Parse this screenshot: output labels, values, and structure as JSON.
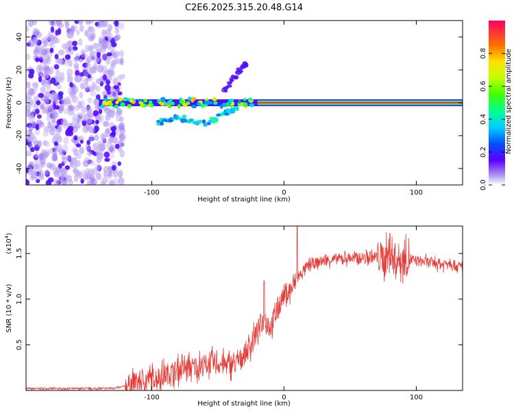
{
  "title": "C2E6.2025.315.20.48.G14",
  "chart_data": [
    {
      "type": "heatmap",
      "name": "spectrogram",
      "xlabel": "Height of straight line (km)",
      "ylabel": "Frequency (Hz)",
      "xlim": [
        -195,
        135
      ],
      "ylim": [
        -50,
        50
      ],
      "xticks": [
        -100,
        0,
        100
      ],
      "yticks": [
        -40,
        -20,
        0,
        20,
        40
      ],
      "colorbar": {
        "label": "Normalized spectral amplitude",
        "range": [
          0,
          1
        ],
        "ticks": [
          0.0,
          0.2,
          0.4,
          0.6,
          0.8
        ]
      },
      "features": [
        {
          "name": "noise-region",
          "x_range": [
            -195,
            -122
          ],
          "freq_range": [
            -50,
            50
          ],
          "amplitude": 0.1
        },
        {
          "name": "carrier-line",
          "x_range": [
            -140,
            135
          ],
          "freq": 0,
          "amplitude": 1.0
        },
        {
          "name": "lower-branch",
          "points": [
            [
              -95,
              -12
            ],
            [
              -80,
              -9
            ],
            [
              -60,
              -13
            ],
            [
              -45,
              -7
            ],
            [
              -35,
              -2
            ]
          ],
          "amplitude": 0.35
        },
        {
          "name": "upper-branch",
          "points": [
            [
              -45,
              8
            ],
            [
              -35,
              18
            ],
            [
              -28,
              25
            ]
          ],
          "amplitude": 0.15
        }
      ]
    },
    {
      "type": "line",
      "name": "snr",
      "xlabel": "Height of straight line (km)",
      "ylabel": "SNR (10 * v/v)",
      "yscale_label": "(x10",
      "yscale_exp": "4",
      "xlim": [
        -195,
        135
      ],
      "ylim": [
        0,
        1.8
      ],
      "xticks": [
        -100,
        0,
        100
      ],
      "yticks": [
        0.5,
        1.0,
        1.5
      ],
      "color": "#e53935",
      "series": [
        {
          "name": "SNR",
          "x": [
            -195,
            -170,
            -140,
            -125,
            -115,
            -105,
            -95,
            -85,
            -75,
            -65,
            -55,
            -45,
            -35,
            -25,
            -20,
            -15,
            -10,
            -5,
            0,
            5,
            10,
            15,
            20,
            30,
            40,
            50,
            60,
            70,
            80,
            90,
            100,
            110,
            120,
            125,
            130,
            135
          ],
          "y": [
            0.02,
            0.02,
            0.02,
            0.03,
            0.07,
            0.12,
            0.15,
            0.2,
            0.24,
            0.26,
            0.3,
            0.28,
            0.3,
            0.5,
            0.65,
            0.8,
            0.7,
            0.9,
            1.05,
            1.1,
            1.22,
            1.32,
            1.38,
            1.42,
            1.44,
            1.45,
            1.45,
            1.46,
            1.45,
            1.43,
            1.42,
            1.4,
            1.38,
            1.42,
            1.36,
            1.35
          ]
        }
      ],
      "noise": [
        {
          "x_range": [
            -195,
            -120
          ],
          "amp": 0.01
        },
        {
          "x_range": [
            -120,
            10
          ],
          "amp": 0.12
        },
        {
          "x_range": [
            10,
            135
          ],
          "amp": 0.06
        },
        {
          "x_range": [
            70,
            95
          ],
          "amp": 0.18
        }
      ],
      "spikes": [
        [
          10,
          1.8
        ],
        [
          -15,
          1.2
        ],
        [
          80,
          1.72
        ]
      ]
    }
  ]
}
